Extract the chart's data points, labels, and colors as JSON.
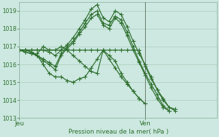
{
  "xlabel": "Pression niveau de la mer( hPa )",
  "bg_color": "#cce8e0",
  "line_color": "#2d6e2d",
  "grid_color": "#aaccbb",
  "ylim": [
    1013.0,
    1019.5
  ],
  "xlim": [
    0,
    33
  ],
  "yticks": [
    1013,
    1014,
    1015,
    1016,
    1017,
    1018,
    1019
  ],
  "xtick_positions": [
    0,
    21
  ],
  "xtick_labels": [
    "Jeu",
    "Ven"
  ],
  "vline_x": 21,
  "series": [
    {
      "x": [
        0,
        1,
        2,
        3,
        4,
        5,
        6,
        7,
        8,
        9,
        10,
        11,
        12,
        13,
        14,
        15,
        16,
        17,
        18,
        19,
        20,
        21,
        22,
        23,
        24,
        25,
        26,
        27,
        28,
        29,
        30,
        31,
        32
      ],
      "y": [
        1016.8,
        1016.8,
        1016.8,
        1016.8,
        1016.8,
        1016.7,
        1016.5,
        1016.8,
        1017.1,
        1017.5,
        1018.0,
        1018.5,
        1019.1,
        1019.35,
        1018.6,
        1018.4,
        1019.0,
        1018.8,
        1018.1,
        1017.3,
        1016.6,
        1016.0,
        1015.3,
        1014.6,
        1014.0,
        1013.6,
        1013.5,
        null,
        null,
        null,
        null,
        null,
        null
      ]
    },
    {
      "x": [
        0,
        1,
        2,
        3,
        4,
        5,
        6,
        7,
        8,
        9,
        10,
        11,
        12,
        13,
        14,
        15,
        16,
        17,
        18,
        19,
        20,
        21,
        22,
        23,
        24,
        25,
        26,
        27,
        28,
        29,
        30,
        31,
        32
      ],
      "y": [
        1016.8,
        1016.8,
        1016.7,
        1016.5,
        1016.3,
        1016.1,
        1015.9,
        1016.6,
        1017.0,
        1017.3,
        1017.8,
        1018.3,
        1018.8,
        1019.0,
        1018.3,
        1018.2,
        1018.7,
        1018.5,
        1017.8,
        1017.0,
        1016.2,
        1015.5,
        1014.9,
        1014.3,
        1013.7,
        1013.4,
        null,
        null,
        null,
        null,
        null,
        null,
        null
      ]
    },
    {
      "x": [
        0,
        1,
        2,
        3,
        4,
        5,
        6,
        7,
        8,
        9,
        10,
        11,
        12,
        13,
        14,
        15,
        16,
        17,
        18,
        19,
        20,
        21,
        22,
        23,
        24,
        25,
        26,
        27,
        28,
        29,
        30,
        31,
        32
      ],
      "y": [
        1016.8,
        1016.8,
        1016.7,
        1016.5,
        1016.2,
        1016.0,
        1015.7,
        1016.5,
        1016.9,
        1017.2,
        1017.7,
        1018.1,
        1018.6,
        1018.8,
        1018.2,
        1018.0,
        1018.6,
        1018.3,
        1017.6,
        1016.8,
        1016.1,
        1015.4,
        1014.7,
        1014.1,
        1013.6,
        1013.4,
        null,
        null,
        null,
        null,
        null,
        null,
        null
      ]
    },
    {
      "x": [
        0,
        1,
        2,
        3,
        4,
        5,
        6,
        7,
        8,
        9,
        10,
        11,
        12,
        13,
        14,
        15,
        16,
        17,
        18,
        19,
        20,
        21,
        22,
        23,
        24,
        25,
        26,
        27,
        28,
        29,
        30,
        31,
        32
      ],
      "y": [
        1016.8,
        1016.7,
        1016.6,
        1016.5,
        1016.0,
        1015.5,
        1015.3,
        1015.3,
        1015.1,
        1015.0,
        1015.2,
        1015.3,
        1015.8,
        1016.3,
        1016.8,
        1016.5,
        1016.2,
        1015.5,
        1015.0,
        1014.5,
        1014.1,
        1013.8,
        null,
        null,
        null,
        null,
        null,
        null,
        null,
        null,
        null,
        null,
        null
      ]
    },
    {
      "x": [
        0,
        1,
        2,
        3,
        4,
        5,
        6,
        7,
        8,
        9,
        10,
        11,
        12,
        13,
        14,
        15,
        16,
        17,
        18,
        19,
        20,
        21,
        22,
        23,
        24,
        25,
        26,
        27,
        28,
        29,
        30,
        31,
        32
      ],
      "y": [
        1016.8,
        1016.7,
        1016.6,
        1016.6,
        1017.0,
        1016.8,
        1016.8,
        1017.0,
        1016.8,
        1016.5,
        1016.2,
        1015.9,
        1015.6,
        1015.5,
        1016.8,
        1016.3,
        1015.8,
        1015.3,
        1014.9,
        1014.5,
        1014.1,
        1013.8,
        null,
        null,
        null,
        null,
        null,
        null,
        null,
        null,
        null,
        null,
        null
      ]
    },
    {
      "x": [
        0,
        1,
        2,
        3,
        4,
        5,
        6,
        7,
        8,
        9,
        10,
        11,
        12,
        13,
        14,
        15,
        16,
        17,
        18,
        19,
        20,
        21,
        22,
        23,
        24,
        25,
        26,
        27,
        28,
        29,
        30,
        31,
        32
      ],
      "y": [
        1016.8,
        1016.8,
        1016.8,
        1016.8,
        1016.8,
        1016.8,
        1016.8,
        1016.8,
        1016.8,
        1016.8,
        1016.8,
        1016.8,
        1016.8,
        1016.8,
        1016.8,
        1016.8,
        1016.8,
        1016.8,
        1016.8,
        1016.8,
        1016.8,
        1015.9,
        1015.2,
        1014.6,
        1014.1,
        1013.6,
        1013.4,
        null,
        null,
        null,
        null,
        null,
        null
      ]
    }
  ],
  "marker": "+",
  "markersize": 4,
  "linewidth": 0.9
}
